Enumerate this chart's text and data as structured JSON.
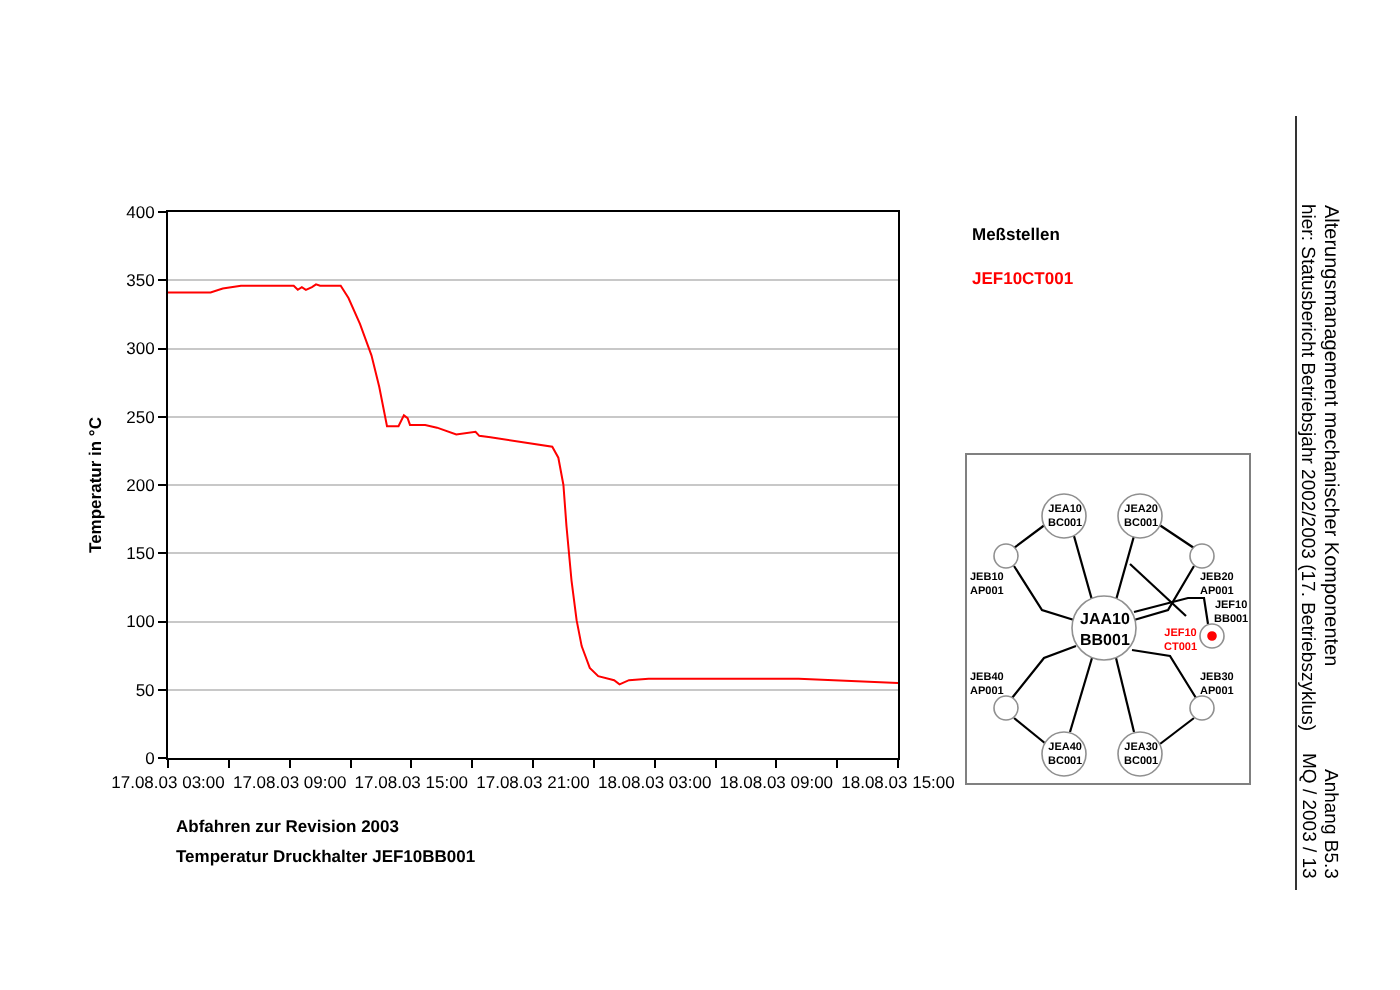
{
  "chart_data": {
    "type": "line",
    "ylabel": "Temperatur in °C",
    "x": [
      "2003-08-17T03:00",
      "2003-08-17T05:06",
      "2003-08-17T05:42",
      "2003-08-17T06:36",
      "2003-08-17T09:12",
      "2003-08-17T09:24",
      "2003-08-17T09:36",
      "2003-08-17T09:48",
      "2003-08-17T10:06",
      "2003-08-17T10:18",
      "2003-08-17T10:30",
      "2003-08-17T11:31",
      "2003-08-17T11:54",
      "2003-08-17T12:28",
      "2003-08-17T13:02",
      "2003-08-17T13:25",
      "2003-08-17T13:48",
      "2003-08-17T14:22",
      "2003-08-17T14:38",
      "2003-08-17T14:49",
      "2003-08-17T14:56",
      "2003-08-17T15:41",
      "2003-08-17T16:16",
      "2003-08-17T17:13",
      "2003-08-17T18:10",
      "2003-08-17T18:21",
      "2003-08-17T18:54",
      "2003-08-17T21:57",
      "2003-08-17T22:15",
      "2003-08-17T22:30",
      "2003-08-17T22:39",
      "2003-08-17T22:54",
      "2003-08-17T23:09",
      "2003-08-17T23:24",
      "2003-08-17T23:48",
      "2003-08-18T00:13",
      "2003-08-18T01:00",
      "2003-08-18T01:16",
      "2003-08-18T01:44",
      "2003-08-18T02:42",
      "2003-08-18T10:06",
      "2003-08-18T15:00"
    ],
    "series": [
      {
        "color": "#ff0000",
        "values": [
          341,
          341,
          344,
          346,
          346,
          343,
          345,
          343,
          345,
          347,
          346,
          346,
          337,
          318,
          295,
          272,
          243,
          243,
          251,
          249,
          244,
          244,
          242,
          237,
          239,
          236,
          235,
          228,
          220,
          200,
          170,
          130,
          101,
          82,
          66,
          60,
          57,
          54,
          57,
          58,
          58,
          55
        ]
      }
    ],
    "xlim": [
      "2003-08-17T03:00",
      "2003-08-18T15:00"
    ],
    "xticks": [
      {
        "value": "2003-08-17T03:00",
        "label": "17.08.03 03:00"
      },
      {
        "value": "2003-08-17T06:00",
        "label": null
      },
      {
        "value": "2003-08-17T09:00",
        "label": "17.08.03 09:00"
      },
      {
        "value": "2003-08-17T12:00",
        "label": null
      },
      {
        "value": "2003-08-17T15:00",
        "label": "17.08.03 15:00"
      },
      {
        "value": "2003-08-17T18:00",
        "label": null
      },
      {
        "value": "2003-08-17T21:00",
        "label": "17.08.03 21:00"
      },
      {
        "value": "2003-08-18T00:00",
        "label": null
      },
      {
        "value": "2003-08-18T03:00",
        "label": "18.08.03 03:00"
      },
      {
        "value": "2003-08-18T06:00",
        "label": null
      },
      {
        "value": "2003-08-18T09:00",
        "label": "18.08.03 09:00"
      },
      {
        "value": "2003-08-18T12:00",
        "label": null
      },
      {
        "value": "2003-08-18T15:00",
        "label": "18.08.03 15:00"
      }
    ],
    "ylim": [
      0,
      400
    ],
    "yticks": [
      0,
      50,
      100,
      150,
      200,
      250,
      300,
      350,
      400
    ],
    "grid": "y",
    "line_style": "solid",
    "annotations": [
      "Abfahren zur Revision 2003",
      "Temperatur Druckhalter JEF10BB001",
      "Meßstellen",
      "JEF10CT001",
      "Alterungsmanagement mechanischer Komponenten",
      "hier: Statusbericht Betriebsjahr 2002/2003 (17. Betriebszyklus)",
      "Anhang B5.3",
      "MQ / 2003 / 13",
      "JEA10\nBC001",
      "JEA20\nBC001",
      "JEB10\nAP001",
      "JEB20\nAP001",
      "JAA10\nBB001",
      "JEF10\nBB001",
      "JEF10\nCT001",
      "JEB40\nAP001",
      "JEB30\nAP001",
      "JEA40\nBC001",
      "JEA30\nBC001"
    ]
  }
}
